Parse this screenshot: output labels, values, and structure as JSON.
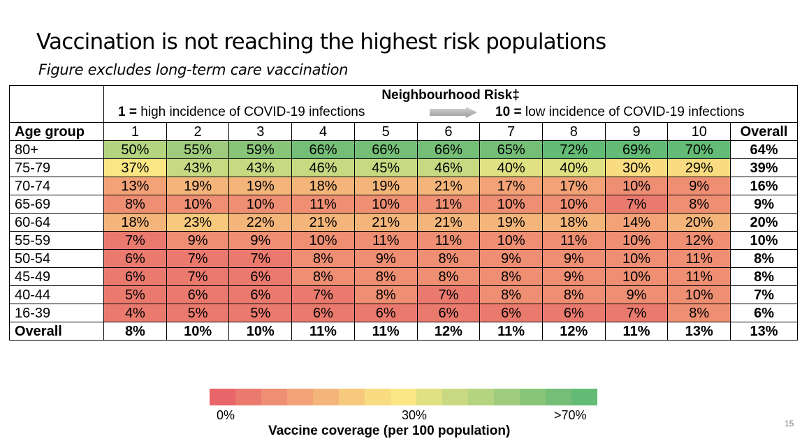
{
  "title": "Vaccination is not reaching the highest risk populations",
  "subtitle": "Figure excludes long-term care vaccination",
  "page_number": "15",
  "colors": {
    "scale": [
      "#e8656a",
      "#eb7a6e",
      "#ee8e73",
      "#f2a276",
      "#f4b57a",
      "#f7c97d",
      "#f9dc81",
      "#fae784",
      "#dfe183",
      "#c8d982",
      "#b4d47f",
      "#9fcc7c",
      "#89c579",
      "#74be77",
      "#63bb75"
    ]
  },
  "chart_data": {
    "type": "heatmap",
    "title": "Neighbourhood Risk‡",
    "risk_low_label_prefix": "1 =",
    "risk_low_label": "high incidence of COVID-19 infections",
    "risk_high_label_prefix": "10 =",
    "risk_high_label": "low incidence of COVID-19 infections",
    "row_header": "Age group",
    "columns": [
      "1",
      "2",
      "3",
      "4",
      "5",
      "6",
      "7",
      "8",
      "9",
      "10",
      "Overall"
    ],
    "rows": [
      {
        "label": "80+",
        "values": [
          50,
          55,
          59,
          66,
          66,
          66,
          65,
          72,
          69,
          70
        ],
        "overall": 64
      },
      {
        "label": "75-79",
        "values": [
          37,
          43,
          43,
          46,
          45,
          46,
          40,
          40,
          30,
          29
        ],
        "overall": 39
      },
      {
        "label": "70-74",
        "values": [
          13,
          19,
          19,
          18,
          19,
          21,
          17,
          17,
          10,
          9
        ],
        "overall": 16
      },
      {
        "label": "65-69",
        "values": [
          8,
          10,
          10,
          11,
          10,
          11,
          10,
          10,
          7,
          8
        ],
        "overall": 9
      },
      {
        "label": "60-64",
        "values": [
          18,
          23,
          22,
          21,
          21,
          21,
          19,
          18,
          14,
          20
        ],
        "overall": 20
      },
      {
        "label": "55-59",
        "values": [
          7,
          9,
          9,
          10,
          11,
          11,
          10,
          11,
          10,
          12
        ],
        "overall": 10
      },
      {
        "label": "50-54",
        "values": [
          6,
          7,
          7,
          8,
          9,
          8,
          9,
          9,
          10,
          11
        ],
        "overall": 8
      },
      {
        "label": "45-49",
        "values": [
          6,
          7,
          6,
          8,
          8,
          8,
          8,
          9,
          10,
          11
        ],
        "overall": 8
      },
      {
        "label": "40-44",
        "values": [
          5,
          6,
          6,
          7,
          8,
          7,
          8,
          8,
          9,
          10
        ],
        "overall": 7
      },
      {
        "label": "16-39",
        "values": [
          4,
          5,
          5,
          6,
          6,
          6,
          6,
          6,
          7,
          8
        ],
        "overall": 6
      }
    ],
    "overall_row": {
      "label": "Overall",
      "values": [
        8,
        10,
        10,
        11,
        11,
        12,
        11,
        12,
        11,
        13
      ],
      "overall": 13
    },
    "legend": {
      "title": "Vaccine coverage (per 100 population)",
      "ticks": [
        "0%",
        "30%",
        ">70%"
      ]
    }
  }
}
